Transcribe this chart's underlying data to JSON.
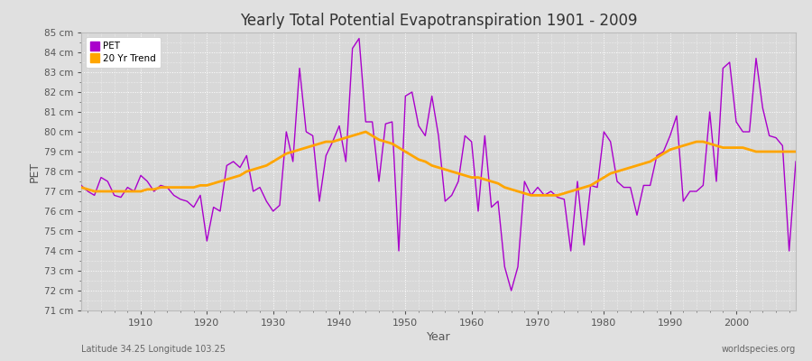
{
  "title": "Yearly Total Potential Evapotranspiration 1901 - 2009",
  "xlabel": "Year",
  "ylabel": "PET",
  "subtitle": "Latitude 34.25 Longitude 103.25",
  "watermark": "worldspecies.org",
  "pet_color": "#AA00CC",
  "trend_color": "#FFA500",
  "background_color": "#E0E0E0",
  "plot_bg_color": "#D8D8D8",
  "ylim": [
    71,
    85
  ],
  "xlim": [
    1901,
    2009
  ],
  "years": [
    1901,
    1902,
    1903,
    1904,
    1905,
    1906,
    1907,
    1908,
    1909,
    1910,
    1911,
    1912,
    1913,
    1914,
    1915,
    1916,
    1917,
    1918,
    1919,
    1920,
    1921,
    1922,
    1923,
    1924,
    1925,
    1926,
    1927,
    1928,
    1929,
    1930,
    1931,
    1932,
    1933,
    1934,
    1935,
    1936,
    1937,
    1938,
    1939,
    1940,
    1941,
    1942,
    1943,
    1944,
    1945,
    1946,
    1947,
    1948,
    1949,
    1950,
    1951,
    1952,
    1953,
    1954,
    1955,
    1956,
    1957,
    1958,
    1959,
    1960,
    1961,
    1962,
    1963,
    1964,
    1965,
    1966,
    1967,
    1968,
    1969,
    1970,
    1971,
    1972,
    1973,
    1974,
    1975,
    1976,
    1977,
    1978,
    1979,
    1980,
    1981,
    1982,
    1983,
    1984,
    1985,
    1986,
    1987,
    1988,
    1989,
    1990,
    1991,
    1992,
    1993,
    1994,
    1995,
    1996,
    1997,
    1998,
    1999,
    2000,
    2001,
    2002,
    2003,
    2004,
    2005,
    2006,
    2007,
    2008,
    2009
  ],
  "pet_values": [
    77.3,
    77.0,
    76.8,
    77.7,
    77.5,
    76.8,
    76.7,
    77.2,
    77.0,
    77.8,
    77.5,
    77.0,
    77.3,
    77.2,
    76.8,
    76.6,
    76.5,
    76.2,
    76.8,
    74.5,
    76.2,
    76.0,
    78.3,
    78.5,
    78.2,
    78.8,
    77.0,
    77.2,
    76.5,
    76.0,
    76.3,
    80.0,
    78.5,
    83.2,
    80.0,
    79.8,
    76.5,
    78.8,
    79.5,
    80.3,
    78.5,
    84.2,
    84.7,
    80.5,
    80.5,
    77.5,
    80.4,
    80.5,
    74.0,
    81.8,
    82.0,
    80.3,
    79.8,
    81.8,
    79.8,
    76.5,
    76.8,
    77.5,
    79.8,
    79.5,
    76.0,
    79.8,
    76.2,
    76.5,
    73.2,
    72.0,
    73.2,
    77.5,
    76.8,
    77.2,
    76.8,
    77.0,
    76.7,
    76.6,
    74.0,
    77.5,
    74.3,
    77.3,
    77.2,
    80.0,
    79.5,
    77.5,
    77.2,
    77.2,
    75.8,
    77.3,
    77.3,
    78.8,
    79.0,
    79.8,
    80.8,
    76.5,
    77.0,
    77.0,
    77.3,
    81.0,
    77.5,
    83.2,
    83.5,
    80.5,
    80.0,
    80.0,
    83.7,
    81.2,
    79.8,
    79.7,
    79.3,
    74.0,
    78.5
  ],
  "trend_values": [
    77.2,
    77.1,
    77.0,
    77.0,
    77.0,
    77.0,
    77.0,
    77.0,
    77.0,
    77.0,
    77.1,
    77.1,
    77.2,
    77.2,
    77.2,
    77.2,
    77.2,
    77.2,
    77.3,
    77.3,
    77.4,
    77.5,
    77.6,
    77.7,
    77.8,
    78.0,
    78.1,
    78.2,
    78.3,
    78.5,
    78.7,
    78.9,
    79.0,
    79.1,
    79.2,
    79.3,
    79.4,
    79.5,
    79.5,
    79.6,
    79.7,
    79.8,
    79.9,
    80.0,
    79.8,
    79.6,
    79.5,
    79.4,
    79.2,
    79.0,
    78.8,
    78.6,
    78.5,
    78.3,
    78.2,
    78.1,
    78.0,
    77.9,
    77.8,
    77.7,
    77.7,
    77.6,
    77.5,
    77.4,
    77.2,
    77.1,
    77.0,
    76.9,
    76.8,
    76.8,
    76.8,
    76.8,
    76.8,
    76.9,
    77.0,
    77.1,
    77.2,
    77.3,
    77.5,
    77.7,
    77.9,
    78.0,
    78.1,
    78.2,
    78.3,
    78.4,
    78.5,
    78.7,
    78.9,
    79.1,
    79.2,
    79.3,
    79.4,
    79.5,
    79.5,
    79.4,
    79.3,
    79.2,
    79.2,
    79.2,
    79.2,
    79.1,
    79.0,
    79.0,
    79.0,
    79.0,
    79.0,
    79.0,
    79.0
  ],
  "xticks": [
    1910,
    1920,
    1930,
    1940,
    1950,
    1960,
    1970,
    1980,
    1990,
    2000
  ],
  "yticks": [
    71,
    72,
    73,
    74,
    75,
    76,
    77,
    78,
    79,
    80,
    81,
    82,
    83,
    84,
    85
  ]
}
